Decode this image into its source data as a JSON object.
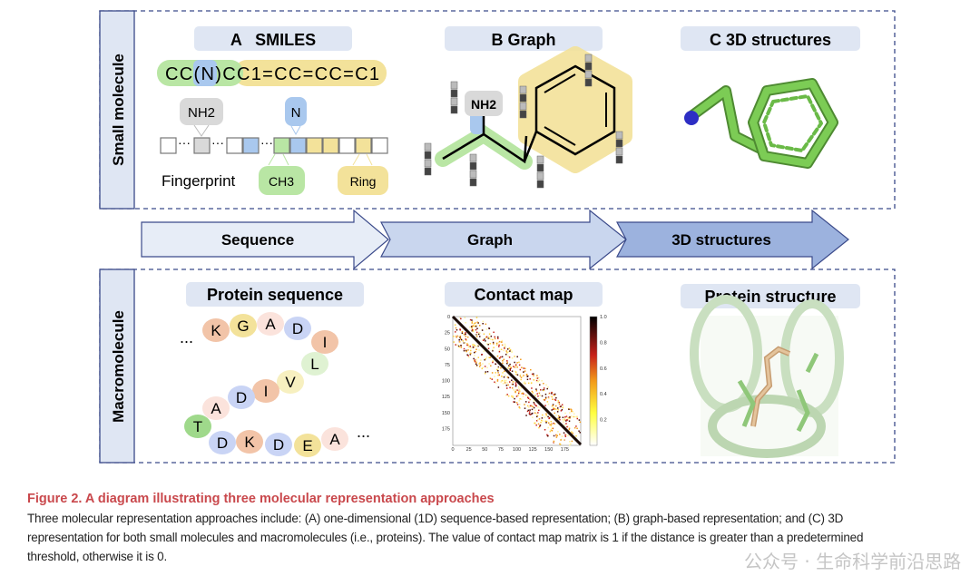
{
  "small_molecule": {
    "side_label": "Small molecule",
    "panel_a": {
      "title": "A   SMILES",
      "smiles_green": "CC(N)C",
      "smiles_blue": "(N)",
      "smiles_yellow": "C1=CC=CC=C1",
      "smiles_full": "CC(N)CC1=CC=CC=C1",
      "nh2": "NH2",
      "n": "N",
      "ch3": "CH3",
      "ring": "Ring",
      "fingerprint": "Fingerprint"
    },
    "panel_b": {
      "title": "B  Graph",
      "nh2": "NH2"
    },
    "panel_c": {
      "title": "C  3D structures"
    }
  },
  "arrows": [
    "Sequence",
    "Graph",
    "3D structures"
  ],
  "macromolecule": {
    "side_label": "Macromolecule",
    "protein_sequence": {
      "title": "Protein sequence",
      "beads": [
        "K",
        "G",
        "A",
        "D",
        "I",
        "L",
        "V",
        "I",
        "D",
        "A",
        "T",
        "D",
        "K",
        "D",
        "E",
        "A"
      ],
      "ellipsis": "..."
    },
    "contact_map": {
      "title": "Contact map",
      "ticks": [
        "0",
        "25",
        "50",
        "75",
        "100",
        "125",
        "150",
        "175"
      ],
      "colorbar_ticks": [
        "1.0",
        "0.8",
        "0.6",
        "0.4",
        "0.2"
      ]
    },
    "protein_structure": {
      "title": "Protein structure"
    }
  },
  "caption": {
    "title": "Figure 2.  A diagram illustrating three molecular representation approaches",
    "line1": "Three molecular representation approaches include: (A) one-dimensional (1D) sequence-based representation; (B) graph-based representation; and (C) 3D",
    "line2": "representation for both small molecules and macromolecules (i.e., proteins). The value of contact map matrix is 1 if the distance is greater than a predetermined",
    "line3": "threshold, otherwise it is 0."
  },
  "watermark": "公众号 · 生命科学前沿思路",
  "colors": {
    "green": "#b9e6a4",
    "blue": "#a9c8ee",
    "yellow": "#f3e29a",
    "gray": "#d9d9d9",
    "title_bg": "#dfe6f3",
    "border": "#3b4a8a",
    "caption_red": "#c9484c"
  }
}
